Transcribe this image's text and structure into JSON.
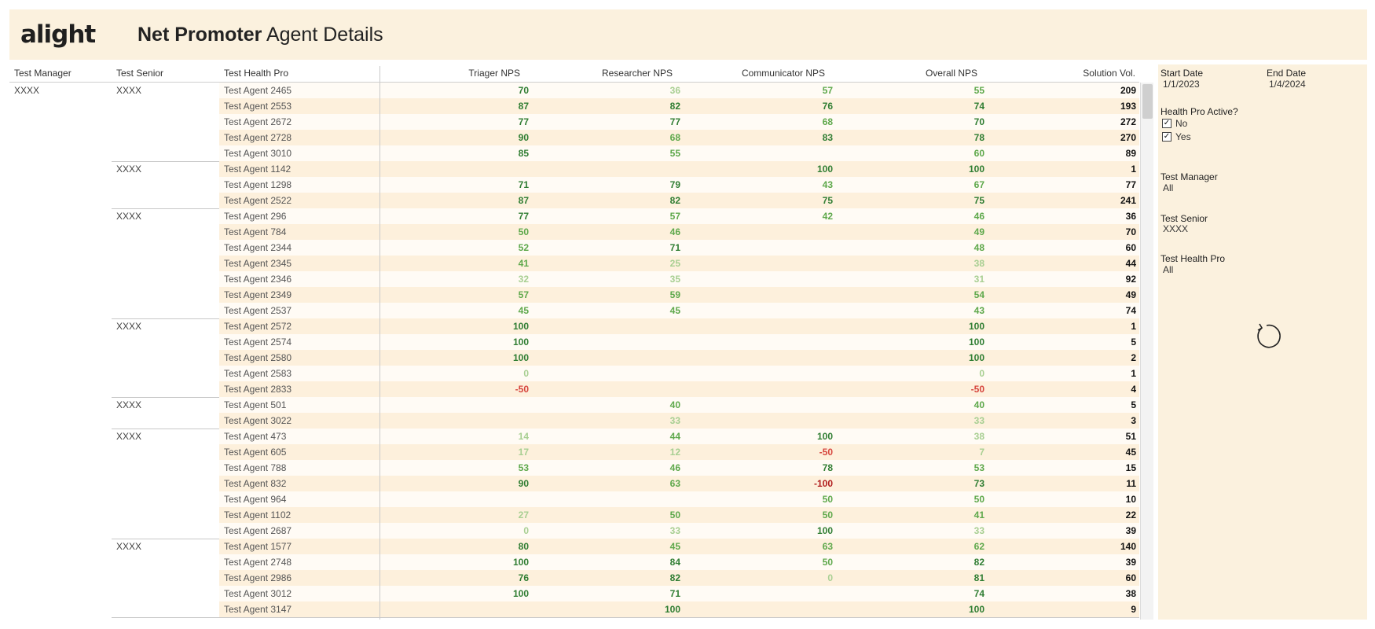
{
  "header": {
    "logo": "alight",
    "title_bold": "Net Promoter",
    "title_rest": "Agent Details"
  },
  "columns": {
    "manager": "Test Manager",
    "senior": "Test Senior",
    "health_pro": "Test Health Pro",
    "triager": "Triager NPS",
    "researcher": "Researcher NPS",
    "communicator": "Communicator NPS",
    "overall": "Overall NPS",
    "volume": "Solution Vol."
  },
  "manager_label": "XXXX",
  "groups": [
    {
      "senior": "XXXX",
      "rows": [
        {
          "agent": "Test Agent 2465",
          "triager": "70",
          "researcher": "36",
          "communicator": "57",
          "overall": "55",
          "volume": "209"
        },
        {
          "agent": "Test Agent 2553",
          "triager": "87",
          "researcher": "82",
          "communicator": "76",
          "overall": "74",
          "volume": "193"
        },
        {
          "agent": "Test Agent 2672",
          "triager": "77",
          "researcher": "77",
          "communicator": "68",
          "overall": "70",
          "volume": "272"
        },
        {
          "agent": "Test Agent 2728",
          "triager": "90",
          "researcher": "68",
          "communicator": "83",
          "overall": "78",
          "volume": "270"
        },
        {
          "agent": "Test Agent 3010",
          "triager": "85",
          "researcher": "55",
          "communicator": "",
          "overall": "60",
          "volume": "89"
        }
      ]
    },
    {
      "senior": "XXXX",
      "rows": [
        {
          "agent": "Test Agent 1142",
          "triager": "",
          "researcher": "",
          "communicator": "100",
          "overall": "100",
          "volume": "1"
        },
        {
          "agent": "Test Agent 1298",
          "triager": "71",
          "researcher": "79",
          "communicator": "43",
          "overall": "67",
          "volume": "77"
        },
        {
          "agent": "Test Agent 2522",
          "triager": "87",
          "researcher": "82",
          "communicator": "75",
          "overall": "75",
          "volume": "241"
        }
      ]
    },
    {
      "senior": "XXXX",
      "rows": [
        {
          "agent": "Test Agent 296",
          "triager": "77",
          "researcher": "57",
          "communicator": "42",
          "overall": "46",
          "volume": "36"
        },
        {
          "agent": "Test Agent 784",
          "triager": "50",
          "researcher": "46",
          "communicator": "",
          "overall": "49",
          "volume": "70"
        },
        {
          "agent": "Test Agent 2344",
          "triager": "52",
          "researcher": "71",
          "communicator": "",
          "overall": "48",
          "volume": "60"
        },
        {
          "agent": "Test Agent 2345",
          "triager": "41",
          "researcher": "25",
          "communicator": "",
          "overall": "38",
          "volume": "44"
        },
        {
          "agent": "Test Agent 2346",
          "triager": "32",
          "researcher": "35",
          "communicator": "",
          "overall": "31",
          "volume": "92"
        },
        {
          "agent": "Test Agent 2349",
          "triager": "57",
          "researcher": "59",
          "communicator": "",
          "overall": "54",
          "volume": "49"
        },
        {
          "agent": "Test Agent 2537",
          "triager": "45",
          "researcher": "45",
          "communicator": "",
          "overall": "43",
          "volume": "74"
        }
      ]
    },
    {
      "senior": "XXXX",
      "rows": [
        {
          "agent": "Test Agent 2572",
          "triager": "100",
          "researcher": "",
          "communicator": "",
          "overall": "100",
          "volume": "1"
        },
        {
          "agent": "Test Agent 2574",
          "triager": "100",
          "researcher": "",
          "communicator": "",
          "overall": "100",
          "volume": "5"
        },
        {
          "agent": "Test Agent 2580",
          "triager": "100",
          "researcher": "",
          "communicator": "",
          "overall": "100",
          "volume": "2"
        },
        {
          "agent": "Test Agent 2583",
          "triager": "0",
          "researcher": "",
          "communicator": "",
          "overall": "0",
          "volume": "1"
        },
        {
          "agent": "Test Agent 2833",
          "triager": "-50",
          "researcher": "",
          "communicator": "",
          "overall": "-50",
          "volume": "4"
        }
      ]
    },
    {
      "senior": "XXXX",
      "rows": [
        {
          "agent": "Test Agent 501",
          "triager": "",
          "researcher": "40",
          "communicator": "",
          "overall": "40",
          "volume": "5"
        },
        {
          "agent": "Test Agent 3022",
          "triager": "",
          "researcher": "33",
          "communicator": "",
          "overall": "33",
          "volume": "3"
        }
      ]
    },
    {
      "senior": "XXXX",
      "rows": [
        {
          "agent": "Test Agent 473",
          "triager": "14",
          "researcher": "44",
          "communicator": "100",
          "overall": "38",
          "volume": "51"
        },
        {
          "agent": "Test Agent 605",
          "triager": "17",
          "researcher": "12",
          "communicator": "-50",
          "overall": "7",
          "volume": "45"
        },
        {
          "agent": "Test Agent 788",
          "triager": "53",
          "researcher": "46",
          "communicator": "78",
          "overall": "53",
          "volume": "15"
        },
        {
          "agent": "Test Agent 832",
          "triager": "90",
          "researcher": "63",
          "communicator": "-100",
          "overall": "73",
          "volume": "11"
        },
        {
          "agent": "Test Agent 964",
          "triager": "",
          "researcher": "",
          "communicator": "50",
          "overall": "50",
          "volume": "10"
        },
        {
          "agent": "Test Agent 1102",
          "triager": "27",
          "researcher": "50",
          "communicator": "50",
          "overall": "41",
          "volume": "22"
        },
        {
          "agent": "Test Agent 2687",
          "triager": "0",
          "researcher": "33",
          "communicator": "100",
          "overall": "33",
          "volume": "39"
        }
      ]
    },
    {
      "senior": "XXXX",
      "rows": [
        {
          "agent": "Test Agent 1577",
          "triager": "80",
          "researcher": "45",
          "communicator": "63",
          "overall": "62",
          "volume": "140"
        },
        {
          "agent": "Test Agent 2748",
          "triager": "100",
          "researcher": "84",
          "communicator": "50",
          "overall": "82",
          "volume": "39"
        },
        {
          "agent": "Test Agent 2986",
          "triager": "76",
          "researcher": "82",
          "communicator": "0",
          "overall": "81",
          "volume": "60"
        },
        {
          "agent": "Test Agent 3012",
          "triager": "100",
          "researcher": "71",
          "communicator": "",
          "overall": "74",
          "volume": "38"
        },
        {
          "agent": "Test Agent 3147",
          "triager": "",
          "researcher": "100",
          "communicator": "",
          "overall": "100",
          "volume": "9"
        }
      ]
    }
  ],
  "filters": {
    "start_date_label": "Start Date",
    "start_date": "1/1/2023",
    "end_date_label": "End Date",
    "end_date": "1/4/2024",
    "active_label": "Health Pro Active?",
    "active_no": "No",
    "active_yes": "Yes",
    "check_mark": "✓",
    "manager_label": "Test Manager",
    "manager_value": "All",
    "senior_label": "Test Senior",
    "senior_value": "XXXX",
    "health_pro_label": "Test Health Pro",
    "health_pro_value": "All"
  },
  "reset_icon": "reset-icon",
  "colors": {
    "header_bg": "#fbf1de",
    "row_alt": "#fdf0dc",
    "nps_high": "#2f7d32",
    "nps_mid": "#5ea84b",
    "nps_low": "#a8cf92",
    "nps_neg": "#d6453d",
    "nps_very_neg": "#b11c1c"
  }
}
